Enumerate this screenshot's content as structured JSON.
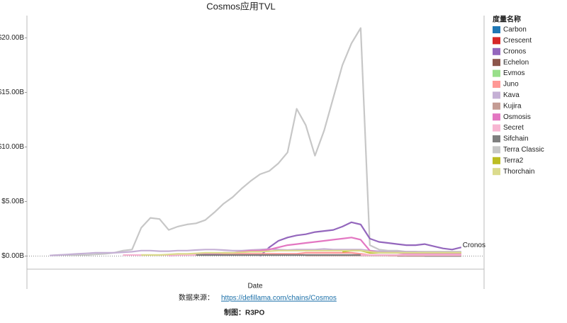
{
  "chart_data": {
    "type": "line",
    "title": "Cosmos应用TVL",
    "x_label": "Date",
    "legend_title": "度量名称",
    "legend_position": "right",
    "annotation": "Cronos",
    "categories": [
      null,
      null,
      null,
      null,
      null,
      null,
      null,
      null,
      null,
      null,
      null,
      null,
      null,
      null,
      null,
      null,
      null,
      null,
      null,
      null,
      null,
      null,
      null,
      null,
      null,
      null,
      null,
      null,
      null,
      null,
      null,
      null,
      null,
      null,
      null,
      null,
      null,
      null,
      null,
      null,
      null,
      null,
      null,
      null,
      null,
      null,
      null,
      null,
      null,
      null
    ],
    "ylim": [
      -1.2,
      21.2
    ],
    "yticks": [
      {
        "value": 0,
        "label": "$0.00B"
      },
      {
        "value": 5,
        "label": "$5.00B"
      },
      {
        "value": 10,
        "label": "$10.00B"
      },
      {
        "value": 15,
        "label": "$15.00B"
      },
      {
        "value": 20,
        "label": "$20.00B"
      }
    ],
    "series": [
      {
        "name": "Carbon",
        "color": "#1f77b4",
        "values": [
          null,
          null,
          null,
          null,
          null,
          null,
          null,
          null,
          null,
          null,
          null,
          null,
          null,
          null,
          null,
          null,
          null,
          null,
          null,
          null,
          null,
          null,
          null,
          null,
          null,
          null,
          null,
          null,
          null,
          null,
          null,
          null,
          null,
          null,
          null,
          null,
          null,
          null,
          null,
          null,
          null,
          null,
          null,
          0.03,
          0.03,
          0.03,
          0.03,
          0.03,
          null,
          null
        ]
      },
      {
        "name": "Crescent",
        "color": "#d62728",
        "values": [
          null,
          null,
          null,
          null,
          null,
          null,
          null,
          null,
          null,
          null,
          null,
          null,
          null,
          null,
          null,
          null,
          null,
          null,
          null,
          null,
          null,
          null,
          null,
          null,
          null,
          null,
          null,
          null,
          null,
          null,
          null,
          null,
          null,
          null,
          null,
          null,
          null,
          null,
          null,
          0.05,
          0.05,
          0.05,
          0.05,
          null,
          null,
          null,
          null,
          null,
          null,
          null
        ]
      },
      {
        "name": "Cronos",
        "color": "#9467bd",
        "values": [
          null,
          null,
          null,
          null,
          null,
          null,
          null,
          null,
          null,
          null,
          null,
          null,
          null,
          null,
          null,
          null,
          null,
          null,
          null,
          null,
          null,
          null,
          null,
          null,
          null,
          0,
          0.8,
          1.4,
          1.7,
          1.9,
          2.0,
          2.2,
          2.3,
          2.4,
          2.7,
          3.1,
          2.9,
          1.6,
          1.3,
          1.2,
          1.1,
          1.0,
          1.0,
          1.1,
          0.9,
          0.7,
          0.6,
          0.8,
          null,
          null
        ]
      },
      {
        "name": "Echelon",
        "color": "#8c564b",
        "values": [
          null,
          null,
          null,
          null,
          null,
          null,
          null,
          null,
          null,
          null,
          null,
          null,
          null,
          null,
          null,
          null,
          null,
          null,
          null,
          null,
          null,
          null,
          null,
          null,
          null,
          null,
          null,
          null,
          null,
          null,
          null,
          null,
          null,
          null,
          null,
          null,
          null,
          null,
          null,
          null,
          0.02,
          0.02,
          0.02,
          0.02,
          0.02,
          0.02,
          0.02,
          0.02,
          null,
          null
        ]
      },
      {
        "name": "Evmos",
        "color": "#98df8a",
        "values": [
          null,
          null,
          null,
          null,
          null,
          null,
          null,
          null,
          null,
          null,
          null,
          null,
          null,
          null,
          null,
          null,
          null,
          null,
          null,
          null,
          null,
          null,
          null,
          null,
          null,
          null,
          null,
          null,
          null,
          null,
          null,
          null,
          null,
          null,
          null,
          null,
          0.1,
          0.1,
          0.1,
          0.1,
          0.1,
          0.05,
          null,
          null,
          null,
          null,
          null,
          null,
          null,
          null
        ]
      },
      {
        "name": "Juno",
        "color": "#ff9896",
        "values": [
          null,
          null,
          null,
          null,
          null,
          null,
          null,
          null,
          null,
          null,
          null,
          null,
          null,
          null,
          null,
          null,
          null,
          null,
          null,
          null,
          0.2,
          0.2,
          0.2,
          0.2,
          0.2,
          0.2,
          0.2,
          0.2,
          0.2,
          0.2,
          0.3,
          0.3,
          0.3,
          0.3,
          0.3,
          0.3,
          0.2,
          0.1,
          0.1,
          0.1,
          0.1,
          0.1,
          0.1,
          0.1,
          0.1,
          0.1,
          0.1,
          0.1,
          null,
          null
        ]
      },
      {
        "name": "Kava",
        "color": "#c5b0d5",
        "values": [
          null,
          null,
          0.05,
          0.1,
          0.15,
          0.2,
          0.25,
          0.3,
          0.3,
          0.3,
          0.35,
          0.4,
          0.5,
          0.5,
          0.45,
          0.45,
          0.5,
          0.5,
          0.55,
          0.6,
          0.6,
          0.55,
          0.5,
          0.5,
          0.55,
          0.6,
          0.65,
          0.6,
          0.55,
          0.6,
          0.6,
          0.6,
          0.65,
          0.6,
          0.6,
          0.6,
          0.6,
          0.5,
          0.45,
          0.4,
          0.4,
          0.4,
          0.4,
          0.35,
          0.35,
          0.35,
          0.35,
          0.35,
          null,
          null
        ]
      },
      {
        "name": "Kujira",
        "color": "#c49c94",
        "values": [
          null,
          null,
          null,
          null,
          null,
          null,
          null,
          null,
          null,
          null,
          null,
          null,
          null,
          null,
          null,
          null,
          null,
          null,
          null,
          null,
          null,
          null,
          null,
          null,
          null,
          null,
          null,
          null,
          null,
          null,
          0.05,
          0.05,
          0.05,
          0.05,
          0.05,
          0.05,
          0.05,
          0.05,
          0.05,
          0.05,
          0.05,
          0.05,
          0.05,
          0.05,
          0.05,
          0.05,
          0.05,
          0.05,
          null,
          null
        ]
      },
      {
        "name": "Osmosis",
        "color": "#e377c2",
        "values": [
          null,
          null,
          null,
          null,
          null,
          null,
          null,
          null,
          null,
          null,
          null,
          null,
          null,
          null,
          null,
          0.05,
          0.1,
          0.1,
          0.15,
          0.2,
          0.2,
          0.3,
          0.3,
          0.4,
          0.5,
          0.5,
          0.6,
          0.8,
          1.0,
          1.1,
          1.2,
          1.3,
          1.4,
          1.5,
          1.6,
          1.7,
          1.5,
          0.5,
          0.3,
          0.3,
          0.3,
          0.2,
          0.2,
          0.2,
          0.2,
          0.2,
          0.2,
          0.2,
          null,
          null
        ]
      },
      {
        "name": "Secret",
        "color": "#f7b6d2",
        "values": [
          null,
          null,
          null,
          null,
          null,
          null,
          null,
          null,
          null,
          null,
          0.1,
          0.1,
          0.1,
          0.1,
          0.1,
          0.1,
          0.1,
          0.1,
          0.1,
          0.1,
          0.1,
          0.1,
          0.1,
          0.1,
          0.1,
          0.1,
          0.1,
          0.1,
          0.1,
          0.1,
          0.1,
          0.1,
          0.1,
          0.1,
          0.1,
          0.1,
          0.1,
          0.1,
          0.1,
          0.1,
          0.1,
          0.1,
          0.1,
          0.1,
          0.1,
          0.1,
          0.1,
          0.1,
          null,
          null
        ]
      },
      {
        "name": "Sifchain",
        "color": "#7f7f7f",
        "values": [
          null,
          null,
          null,
          null,
          null,
          null,
          null,
          null,
          null,
          null,
          null,
          null,
          null,
          null,
          null,
          null,
          null,
          null,
          0.1,
          0.1,
          0.1,
          0.1,
          0.1,
          0.1,
          0.1,
          0.1,
          0.1,
          0.1,
          0.1,
          0.1,
          0.1,
          0.1,
          0.1,
          0.1,
          0.1,
          0.1,
          0.1,
          null,
          null,
          null,
          null,
          null,
          null,
          null,
          null,
          null,
          null,
          null,
          null,
          null
        ]
      },
      {
        "name": "Terra Classic",
        "color": "#c7c7c7",
        "values": [
          null,
          null,
          0.05,
          0.1,
          0.1,
          0.1,
          0.1,
          0.15,
          0.2,
          0.3,
          0.5,
          0.6,
          2.6,
          3.5,
          3.4,
          2.4,
          2.7,
          2.9,
          3.0,
          3.3,
          4.0,
          4.8,
          5.4,
          6.2,
          6.9,
          7.5,
          7.8,
          8.5,
          9.5,
          13.5,
          12.0,
          9.2,
          11.5,
          14.5,
          17.5,
          19.5,
          20.9,
          1.0,
          0.6,
          0.5,
          0.5,
          0.4,
          0.4,
          0.4,
          0.4,
          0.4,
          0.4,
          0.4,
          null,
          null
        ]
      },
      {
        "name": "Terra2",
        "color": "#bcbd22",
        "values": [
          null,
          null,
          null,
          null,
          null,
          null,
          null,
          null,
          null,
          null,
          null,
          null,
          null,
          null,
          null,
          null,
          null,
          null,
          null,
          null,
          null,
          null,
          null,
          null,
          null,
          null,
          null,
          null,
          null,
          null,
          null,
          null,
          null,
          null,
          0.4,
          0.5,
          0.5,
          0.3,
          0.3,
          0.3,
          0.3,
          0.3,
          0.3,
          0.3,
          0.3,
          0.3,
          0.3,
          0.3,
          null,
          null
        ]
      },
      {
        "name": "Thorchain",
        "color": "#dbdb8d",
        "values": [
          null,
          null,
          null,
          null,
          null,
          null,
          null,
          null,
          null,
          null,
          null,
          null,
          0.1,
          0.1,
          0.1,
          0.15,
          0.2,
          0.2,
          0.25,
          0.3,
          0.3,
          0.3,
          0.3,
          0.35,
          0.4,
          0.4,
          0.45,
          0.5,
          0.5,
          0.5,
          0.5,
          0.5,
          0.5,
          0.5,
          0.5,
          0.5,
          0.5,
          0.4,
          0.3,
          0.3,
          0.3,
          0.3,
          0.3,
          0.3,
          0.3,
          0.3,
          0.3,
          0.3,
          null,
          null
        ]
      }
    ]
  },
  "footer": {
    "source_label": "数据来源：",
    "source_url": "https://defillama.com/chains/Cosmos",
    "credit": "制图：R3PO"
  }
}
